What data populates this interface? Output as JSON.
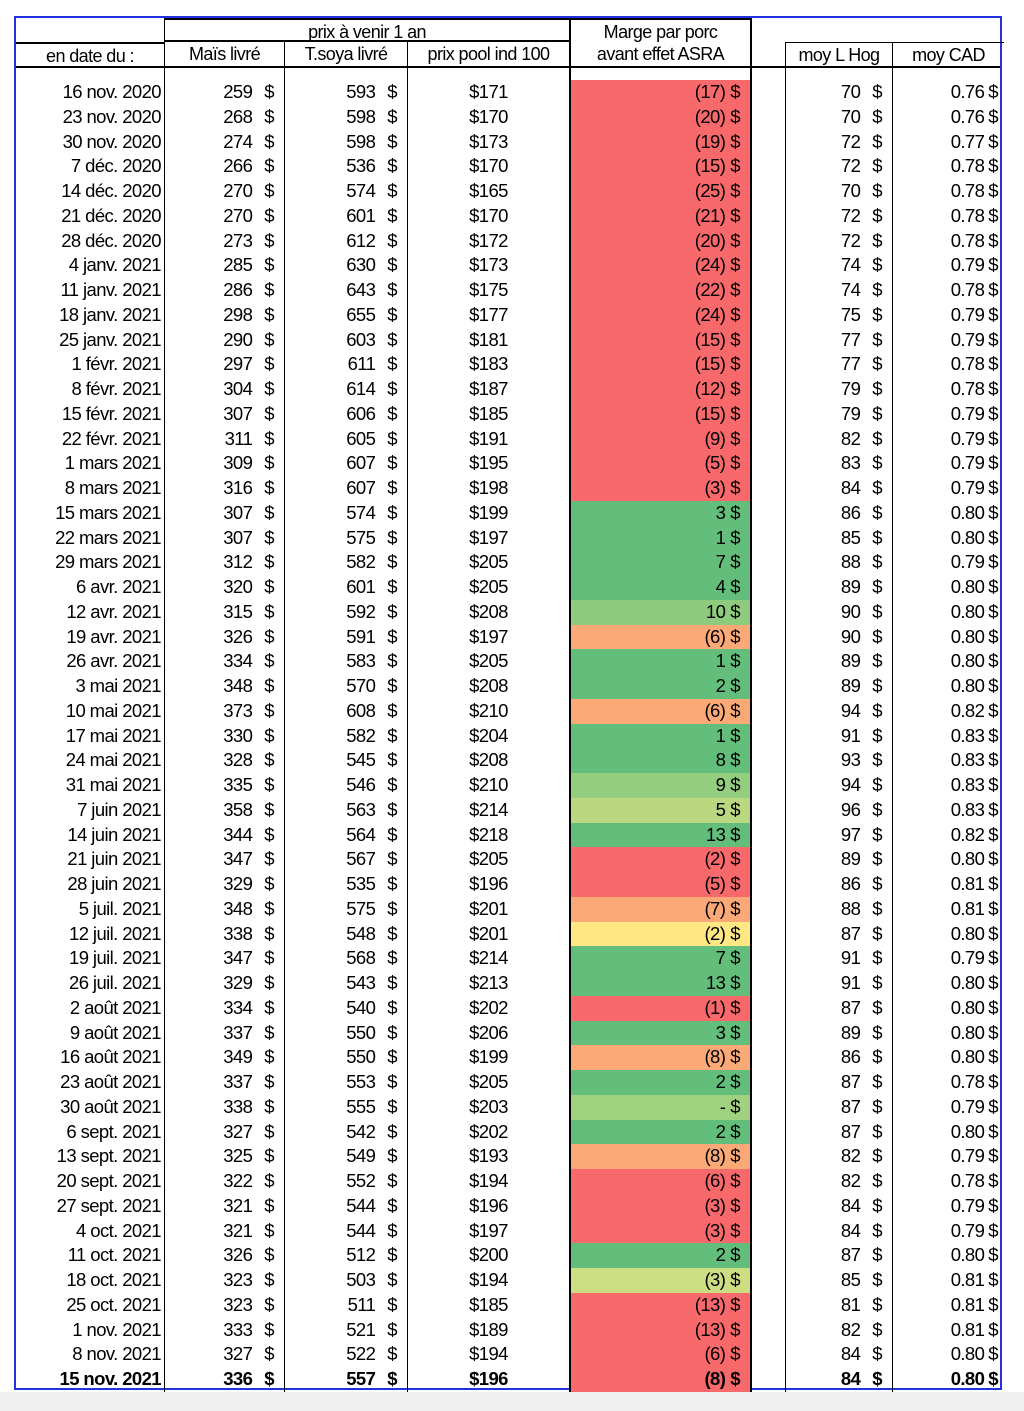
{
  "header": {
    "group_label": "prix à venir 1 an",
    "marge_line1": "Marge par porc",
    "marge_line2": "avant effet ASRA",
    "columns": [
      "en date du :",
      "Maïs livré",
      "T.soya livré",
      "prix pool ind 100",
      "moy L Hog",
      "moy CAD"
    ]
  },
  "currency": "$",
  "colors": {
    "red": "#F8696B",
    "green": "#63BE7B",
    "lightgreen": "#8FCB7E",
    "lightgreen2": "#93CD7E",
    "lime": "#BAD880",
    "orange": "#FBAA77",
    "yellow": "#FFE884",
    "yellowgreen": "#CDDD82",
    "palegreen": "#A0D17F"
  },
  "rows": [
    {
      "date": "16 nov. 2020",
      "mais": "259",
      "soya": "593",
      "pool": "$171",
      "marge": "(17)",
      "color": "red",
      "hog": "70",
      "cad": "0.76"
    },
    {
      "date": "23 nov. 2020",
      "mais": "268",
      "soya": "598",
      "pool": "$170",
      "marge": "(20)",
      "color": "red",
      "hog": "70",
      "cad": "0.76"
    },
    {
      "date": "30 nov. 2020",
      "mais": "274",
      "soya": "598",
      "pool": "$173",
      "marge": "(19)",
      "color": "red",
      "hog": "72",
      "cad": "0.77"
    },
    {
      "date": "7 déc. 2020",
      "mais": "266",
      "soya": "536",
      "pool": "$170",
      "marge": "(15)",
      "color": "red",
      "hog": "72",
      "cad": "0.78"
    },
    {
      "date": "14 déc. 2020",
      "mais": "270",
      "soya": "574",
      "pool": "$165",
      "marge": "(25)",
      "color": "red",
      "hog": "70",
      "cad": "0.78"
    },
    {
      "date": "21 déc. 2020",
      "mais": "270",
      "soya": "601",
      "pool": "$170",
      "marge": "(21)",
      "color": "red",
      "hog": "72",
      "cad": "0.78"
    },
    {
      "date": "28 déc. 2020",
      "mais": "273",
      "soya": "612",
      "pool": "$172",
      "marge": "(20)",
      "color": "red",
      "hog": "72",
      "cad": "0.78"
    },
    {
      "date": "4 janv. 2021",
      "mais": "285",
      "soya": "630",
      "pool": "$173",
      "marge": "(24)",
      "color": "red",
      "hog": "74",
      "cad": "0.79"
    },
    {
      "date": "11 janv. 2021",
      "mais": "286",
      "soya": "643",
      "pool": "$175",
      "marge": "(22)",
      "color": "red",
      "hog": "74",
      "cad": "0.78"
    },
    {
      "date": "18 janv. 2021",
      "mais": "298",
      "soya": "655",
      "pool": "$177",
      "marge": "(24)",
      "color": "red",
      "hog": "75",
      "cad": "0.79"
    },
    {
      "date": "25 janv. 2021",
      "mais": "290",
      "soya": "603",
      "pool": "$181",
      "marge": "(15)",
      "color": "red",
      "hog": "77",
      "cad": "0.79"
    },
    {
      "date": "1 févr. 2021",
      "mais": "297",
      "soya": "611",
      "pool": "$183",
      "marge": "(15)",
      "color": "red",
      "hog": "77",
      "cad": "0.78"
    },
    {
      "date": "8 févr. 2021",
      "mais": "304",
      "soya": "614",
      "pool": "$187",
      "marge": "(12)",
      "color": "red",
      "hog": "79",
      "cad": "0.78"
    },
    {
      "date": "15 févr. 2021",
      "mais": "307",
      "soya": "606",
      "pool": "$185",
      "marge": "(15)",
      "color": "red",
      "hog": "79",
      "cad": "0.79"
    },
    {
      "date": "22 févr. 2021",
      "mais": "311",
      "soya": "605",
      "pool": "$191",
      "marge": "(9)",
      "color": "red",
      "hog": "82",
      "cad": "0.79"
    },
    {
      "date": "1 mars 2021",
      "mais": "309",
      "soya": "607",
      "pool": "$195",
      "marge": "(5)",
      "color": "red",
      "hog": "83",
      "cad": "0.79"
    },
    {
      "date": "8 mars 2021",
      "mais": "316",
      "soya": "607",
      "pool": "$198",
      "marge": "(3)",
      "color": "red",
      "hog": "84",
      "cad": "0.79"
    },
    {
      "date": "15 mars 2021",
      "mais": "307",
      "soya": "574",
      "pool": "$199",
      "marge": "3",
      "color": "green",
      "hog": "86",
      "cad": "0.80"
    },
    {
      "date": "22 mars 2021",
      "mais": "307",
      "soya": "575",
      "pool": "$197",
      "marge": "1",
      "color": "green",
      "hog": "85",
      "cad": "0.80"
    },
    {
      "date": "29 mars 2021",
      "mais": "312",
      "soya": "582",
      "pool": "$205",
      "marge": "7",
      "color": "green",
      "hog": "88",
      "cad": "0.79"
    },
    {
      "date": "6 avr. 2021",
      "mais": "320",
      "soya": "601",
      "pool": "$205",
      "marge": "4",
      "color": "green",
      "hog": "89",
      "cad": "0.80"
    },
    {
      "date": "12 avr. 2021",
      "mais": "315",
      "soya": "592",
      "pool": "$208",
      "marge": "10",
      "color": "lightgreen",
      "hog": "90",
      "cad": "0.80"
    },
    {
      "date": "19 avr. 2021",
      "mais": "326",
      "soya": "591",
      "pool": "$197",
      "marge": "(6)",
      "color": "orange",
      "hog": "90",
      "cad": "0.80"
    },
    {
      "date": "26 avr. 2021",
      "mais": "334",
      "soya": "583",
      "pool": "$205",
      "marge": "1",
      "color": "green",
      "hog": "89",
      "cad": "0.80"
    },
    {
      "date": "3 mai 2021",
      "mais": "348",
      "soya": "570",
      "pool": "$208",
      "marge": "2",
      "color": "green",
      "hog": "89",
      "cad": "0.80"
    },
    {
      "date": "10 mai 2021",
      "mais": "373",
      "soya": "608",
      "pool": "$210",
      "marge": "(6)",
      "color": "orange",
      "hog": "94",
      "cad": "0.82"
    },
    {
      "date": "17 mai 2021",
      "mais": "330",
      "soya": "582",
      "pool": "$204",
      "marge": "1",
      "color": "green",
      "hog": "91",
      "cad": "0.83"
    },
    {
      "date": "24 mai 2021",
      "mais": "328",
      "soya": "545",
      "pool": "$208",
      "marge": "8",
      "color": "green",
      "hog": "93",
      "cad": "0.83"
    },
    {
      "date": "31 mai 2021",
      "mais": "335",
      "soya": "546",
      "pool": "$210",
      "marge": "9",
      "color": "lightgreen2",
      "hog": "94",
      "cad": "0.83"
    },
    {
      "date": "7 juin 2021",
      "mais": "358",
      "soya": "563",
      "pool": "$214",
      "marge": "5",
      "color": "lime",
      "hog": "96",
      "cad": "0.83"
    },
    {
      "date": "14 juin 2021",
      "mais": "344",
      "soya": "564",
      "pool": "$218",
      "marge": "13",
      "color": "green",
      "hog": "97",
      "cad": "0.82"
    },
    {
      "date": "21 juin 2021",
      "mais": "347",
      "soya": "567",
      "pool": "$205",
      "marge": "(2)",
      "color": "red",
      "hog": "89",
      "cad": "0.80"
    },
    {
      "date": "28 juin 2021",
      "mais": "329",
      "soya": "535",
      "pool": "$196",
      "marge": "(5)",
      "color": "red",
      "hog": "86",
      "cad": "0.81"
    },
    {
      "date": "5 juil. 2021",
      "mais": "348",
      "soya": "575",
      "pool": "$201",
      "marge": "(7)",
      "color": "orange",
      "hog": "88",
      "cad": "0.81"
    },
    {
      "date": "12 juil. 2021",
      "mais": "338",
      "soya": "548",
      "pool": "$201",
      "marge": "(2)",
      "color": "yellow",
      "hog": "87",
      "cad": "0.80"
    },
    {
      "date": "19 juil. 2021",
      "mais": "347",
      "soya": "568",
      "pool": "$214",
      "marge": "7",
      "color": "green",
      "hog": "91",
      "cad": "0.79"
    },
    {
      "date": "26 juil. 2021",
      "mais": "329",
      "soya": "543",
      "pool": "$213",
      "marge": "13",
      "color": "green",
      "hog": "91",
      "cad": "0.80"
    },
    {
      "date": "2 août 2021",
      "mais": "334",
      "soya": "540",
      "pool": "$202",
      "marge": "(1)",
      "color": "red",
      "hog": "87",
      "cad": "0.80"
    },
    {
      "date": "9 août 2021",
      "mais": "337",
      "soya": "550",
      "pool": "$206",
      "marge": "3",
      "color": "green",
      "hog": "89",
      "cad": "0.80"
    },
    {
      "date": "16 août 2021",
      "mais": "349",
      "soya": "550",
      "pool": "$199",
      "marge": "(8)",
      "color": "orange",
      "hog": "86",
      "cad": "0.80"
    },
    {
      "date": "23 août 2021",
      "mais": "337",
      "soya": "553",
      "pool": "$205",
      "marge": "2",
      "color": "green",
      "hog": "87",
      "cad": "0.78"
    },
    {
      "date": "30 août 2021",
      "mais": "338",
      "soya": "555",
      "pool": "$203",
      "marge": "-",
      "color": "palegreen",
      "hog": "87",
      "cad": "0.79"
    },
    {
      "date": "6 sept. 2021",
      "mais": "327",
      "soya": "542",
      "pool": "$202",
      "marge": "2",
      "color": "green",
      "hog": "87",
      "cad": "0.80"
    },
    {
      "date": "13 sept. 2021",
      "mais": "325",
      "soya": "549",
      "pool": "$193",
      "marge": "(8)",
      "color": "orange",
      "hog": "82",
      "cad": "0.79"
    },
    {
      "date": "20 sept. 2021",
      "mais": "322",
      "soya": "552",
      "pool": "$194",
      "marge": "(6)",
      "color": "red",
      "hog": "82",
      "cad": "0.78"
    },
    {
      "date": "27 sept. 2021",
      "mais": "321",
      "soya": "544",
      "pool": "$196",
      "marge": "(3)",
      "color": "red",
      "hog": "84",
      "cad": "0.79"
    },
    {
      "date": "4 oct. 2021",
      "mais": "321",
      "soya": "544",
      "pool": "$197",
      "marge": "(3)",
      "color": "red",
      "hog": "84",
      "cad": "0.79"
    },
    {
      "date": "11 oct. 2021",
      "mais": "326",
      "soya": "512",
      "pool": "$200",
      "marge": "2",
      "color": "green",
      "hog": "87",
      "cad": "0.80"
    },
    {
      "date": "18 oct. 2021",
      "mais": "323",
      "soya": "503",
      "pool": "$194",
      "marge": "(3)",
      "color": "yellowgreen",
      "hog": "85",
      "cad": "0.81"
    },
    {
      "date": "25 oct. 2021",
      "mais": "323",
      "soya": "511",
      "pool": "$185",
      "marge": "(13)",
      "color": "red",
      "hog": "81",
      "cad": "0.81"
    },
    {
      "date": "1 nov. 2021",
      "mais": "333",
      "soya": "521",
      "pool": "$189",
      "marge": "(13)",
      "color": "red",
      "hog": "82",
      "cad": "0.81"
    },
    {
      "date": "8 nov. 2021",
      "mais": "327",
      "soya": "522",
      "pool": "$194",
      "marge": "(6)",
      "color": "red",
      "hog": "84",
      "cad": "0.80"
    },
    {
      "date": "15 nov. 2021",
      "mais": "336",
      "soya": "557",
      "pool": "$196",
      "marge": "(8)",
      "color": "red",
      "hog": "84",
      "cad": "0.80",
      "bold": true
    }
  ]
}
